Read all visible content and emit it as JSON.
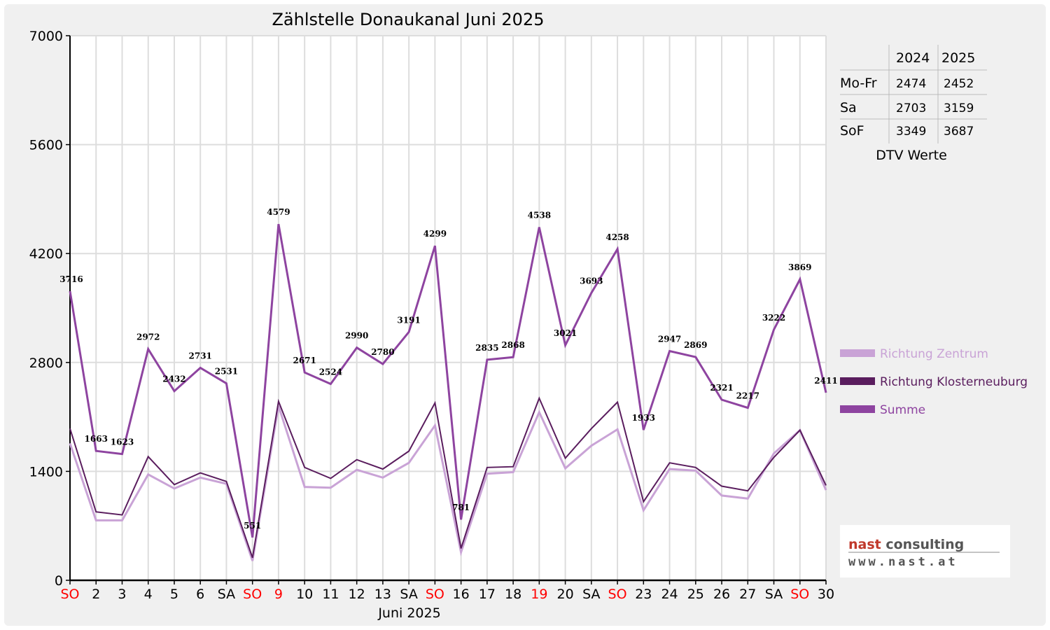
{
  "chart_data": {
    "type": "line",
    "title": "Zählstelle Donaukanal Juni 2025",
    "xlabel": "Juni 2025",
    "ylabel": "",
    "ylim": [
      0,
      7000
    ],
    "yticks": [
      "0",
      "1400",
      "2800",
      "4200",
      "5600",
      "7000"
    ],
    "grid": true,
    "legend_position": "right",
    "categories": [
      "SO",
      "2",
      "3",
      "4",
      "5",
      "6",
      "SA",
      "SO",
      "9",
      "10",
      "11",
      "12",
      "13",
      "SA",
      "SO",
      "16",
      "17",
      "18",
      "19",
      "20",
      "SA",
      "SO",
      "23",
      "24",
      "25",
      "26",
      "27",
      "SA",
      "SO",
      "30"
    ],
    "red_categories": [
      0,
      7,
      8,
      14,
      18,
      21,
      28
    ],
    "series": [
      {
        "name": "Richtung Zentrum",
        "color": "#c9a3d6",
        "values": [
          1760,
          770,
          770,
          1360,
          1180,
          1320,
          1240,
          250,
          2240,
          1200,
          1190,
          1420,
          1320,
          1510,
          1990,
          360,
          1370,
          1390,
          2160,
          1440,
          1730,
          1940,
          900,
          1430,
          1410,
          1090,
          1050,
          1630,
          1930,
          1160
        ]
      },
      {
        "name": "Richtung Klosterneuburg",
        "color": "#5a1d5e",
        "values": [
          1950,
          880,
          840,
          1590,
          1230,
          1380,
          1270,
          290,
          2300,
          1450,
          1310,
          1550,
          1430,
          1660,
          2280,
          410,
          1450,
          1460,
          2340,
          1570,
          1950,
          2290,
          1010,
          1510,
          1450,
          1210,
          1150,
          1580,
          1930,
          1220
        ]
      },
      {
        "name": "Summe",
        "color": "#8e44a0",
        "values": [
          3716,
          1663,
          1623,
          2972,
          2432,
          2731,
          2531,
          551,
          4579,
          2671,
          2524,
          2990,
          2780,
          3191,
          4299,
          781,
          2835,
          2868,
          4538,
          3021,
          3693,
          4258,
          1933,
          2947,
          2869,
          2321,
          2217,
          3222,
          3869,
          2411
        ]
      }
    ],
    "data_labels": [
      "3716",
      "1663",
      "1623",
      "2972",
      "2432",
      "2731",
      "2531",
      "551",
      "4579",
      "2671",
      "2524",
      "2990",
      "2780",
      "3191",
      "4299",
      "781",
      "2835",
      "2868",
      "4538",
      "3021",
      "3693",
      "4258",
      "1933",
      "2947",
      "2869",
      "2321",
      "2217",
      "3222",
      "3869",
      "2411"
    ]
  },
  "dtv_table": {
    "caption": "DTV Werte",
    "columns": [
      "",
      "2024",
      "2025"
    ],
    "rows": [
      {
        "label": "Mo-Fr",
        "v2024": "2474",
        "v2025": "2452"
      },
      {
        "label": "Sa",
        "v2024": "2703",
        "v2025": "3159"
      },
      {
        "label": "SoF",
        "v2024": "3349",
        "v2025": "3687"
      }
    ]
  },
  "logo": {
    "line1_a": "nast",
    "line1_b": " consulting",
    "line2": "www.nast.at"
  },
  "colors": {
    "holiday_red": "#ff0000",
    "grid": "#dddddd",
    "axis": "#000000"
  }
}
